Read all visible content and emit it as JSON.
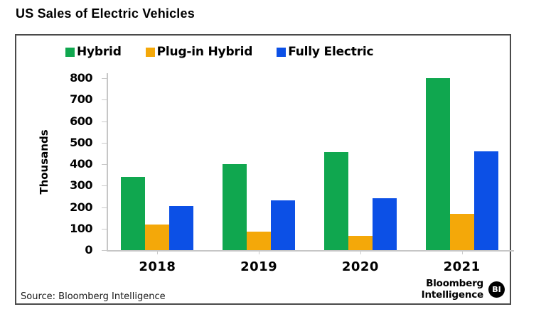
{
  "page": {
    "title": "US Sales of Electric Vehicles",
    "source_label": "Source: Bloomberg Intelligence",
    "branding": {
      "line1": "Bloomberg",
      "line2": "Intelligence",
      "badge": "BI"
    }
  },
  "chart_data": {
    "type": "bar",
    "title": "US Sales of Electric Vehicles",
    "categories": [
      "2018",
      "2019",
      "2020",
      "2021"
    ],
    "series": [
      {
        "name": "Hybrid",
        "color": "#10A74F",
        "values": [
          340,
          400,
          455,
          800
        ]
      },
      {
        "name": "Plug-in Hybrid",
        "color": "#F4A809",
        "values": [
          120,
          85,
          65,
          170
        ]
      },
      {
        "name": "Fully Electric",
        "color": "#0C50E6",
        "values": [
          205,
          230,
          240,
          460
        ]
      }
    ],
    "xlabel": "",
    "ylabel": "Thousands",
    "ylim": [
      0,
      800
    ],
    "yticks": [
      0,
      100,
      200,
      300,
      400,
      500,
      600,
      700,
      800
    ],
    "legend_position": "top",
    "grid": false,
    "source": "Bloomberg Intelligence"
  }
}
